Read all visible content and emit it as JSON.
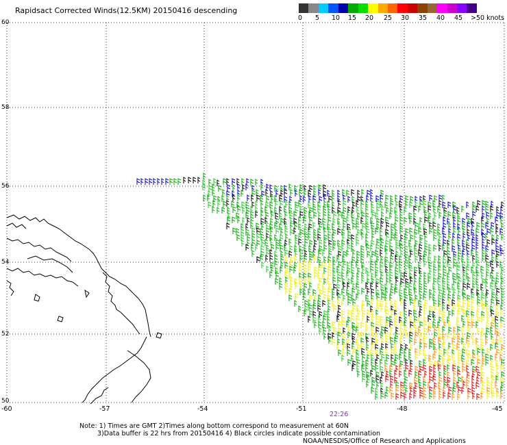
{
  "title": "Rapidsact Corrected Winds(12.5KM) 20150416 descending",
  "scale": {
    "colors": [
      "#333333",
      "#888888",
      "#00ccff",
      "#0055ff",
      "#0000aa",
      "#00aa00",
      "#00dd00",
      "#ffff00",
      "#ffaa00",
      "#ff6600",
      "#ff0000",
      "#cc0000",
      "#884400",
      "#996633",
      "#ff00ff",
      "#cc00cc",
      "#8800ff",
      "#440088"
    ],
    "labels": [
      "0",
      "5",
      "10",
      "15",
      "20",
      "25",
      "30",
      "35",
      "40",
      "45",
      ">50 knots"
    ]
  },
  "map": {
    "lat_labels": [
      "60",
      "58",
      "56",
      "54",
      "52",
      "50"
    ],
    "lon_labels": [
      "-60",
      "-57",
      "-54",
      "-51",
      "-48",
      "-45"
    ],
    "timestamp": "22:26"
  },
  "notes": {
    "line1": "Note: 1) Times are GMT 2)Times along bottom correspond to measurement at 60N",
    "line2": "3)Data buffer is 22 hrs from 20150416 4) Black circles indicate possible contamination",
    "credit": "NOAA/NESDIS/Office of Research and Applications"
  },
  "wind_colors": {
    "green": "#00aa00",
    "light_green": "#22cc22",
    "blue": "#0000cc",
    "yellow": "#eeee00",
    "orange": "#ff8800",
    "red": "#dd0000",
    "black": "#000000"
  }
}
